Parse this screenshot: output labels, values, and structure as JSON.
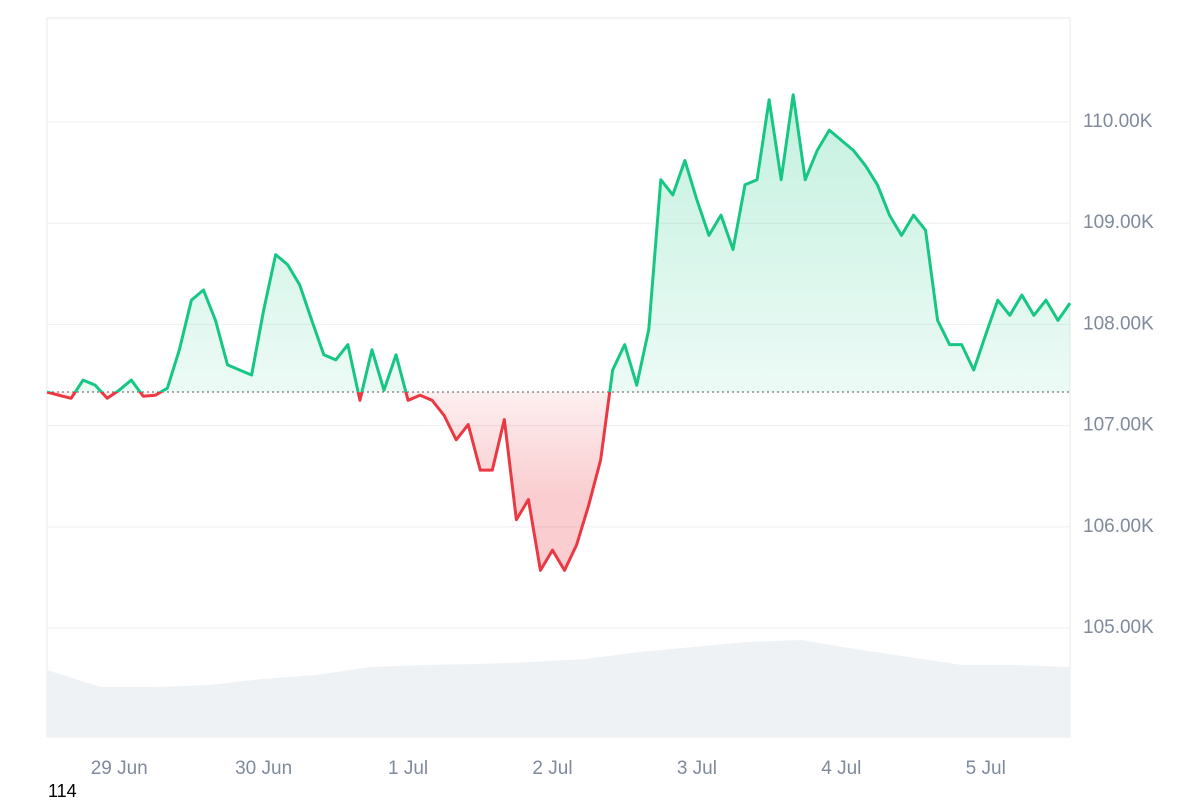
{
  "chart_data": {
    "type": "line",
    "categories": [
      null,
      null,
      null,
      null,
      null,
      null,
      "29 Jun",
      null,
      null,
      null,
      null,
      null,
      null,
      null,
      null,
      null,
      null,
      null,
      "30 Jun",
      null,
      null,
      null,
      null,
      null,
      null,
      null,
      null,
      null,
      null,
      null,
      "1 Jul",
      null,
      null,
      null,
      null,
      null,
      null,
      null,
      null,
      null,
      null,
      null,
      "2 Jul",
      null,
      null,
      null,
      null,
      null,
      null,
      null,
      null,
      null,
      null,
      null,
      "3 Jul",
      null,
      null,
      null,
      null,
      null,
      null,
      null,
      null,
      null,
      null,
      null,
      "4 Jul",
      null,
      null,
      null,
      null,
      null,
      null,
      null,
      null,
      null,
      null,
      null,
      "5 Jul",
      null,
      null,
      null,
      null,
      null,
      null,
      null
    ],
    "values": [
      107332,
      107300,
      107270,
      107450,
      107400,
      107270,
      107350,
      107450,
      107290,
      107300,
      107370,
      107750,
      108240,
      108340,
      108040,
      107600,
      107550,
      107500,
      108140,
      108690,
      108590,
      108390,
      108040,
      107700,
      107650,
      107800,
      107250,
      107750,
      107350,
      107700,
      107250,
      107300,
      107250,
      107100,
      106860,
      107010,
      106560,
      106560,
      107060,
      106070,
      106270,
      105570,
      105770,
      105570,
      105820,
      106210,
      106660,
      107550,
      107800,
      107400,
      107950,
      109430,
      109280,
      109620,
      109230,
      108880,
      109080,
      108740,
      109380,
      109430,
      110220,
      109430,
      110270,
      109430,
      109720,
      109920,
      109820,
      109720,
      109570,
      109380,
      109080,
      108880,
      109080,
      108930,
      108040,
      107800,
      107800,
      107550,
      107900,
      108240,
      108090,
      108290,
      108090,
      108240,
      108040,
      108210
    ],
    "baseline": 107332,
    "up_color": "#16c784",
    "down_color": "#ea3943",
    "ylim": [
      103923,
      111028
    ],
    "yticks": [
      {
        "value": 105000,
        "label": "105.00K"
      },
      {
        "value": 106000,
        "label": "106.00K"
      },
      {
        "value": 107000,
        "label": "107.00K"
      },
      {
        "value": 108000,
        "label": "108.00K"
      },
      {
        "value": 109000,
        "label": "109.00K"
      },
      {
        "value": 110000,
        "label": "110.00K"
      }
    ],
    "grid": true,
    "volume": {
      "color": "#eff2f5",
      "values": [
        67,
        50,
        50,
        52,
        58,
        62,
        70,
        72,
        73,
        75,
        78,
        85,
        90,
        95,
        97,
        88,
        80,
        72,
        72,
        70
      ]
    }
  },
  "footer_text": "114"
}
